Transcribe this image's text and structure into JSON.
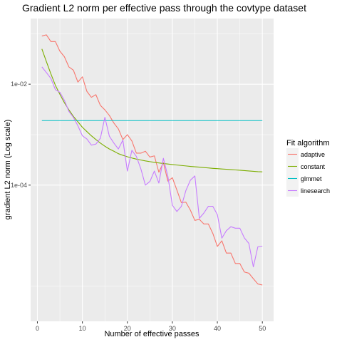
{
  "chart_data": {
    "type": "line",
    "title": "Gradient L2 norm per effective pass through the covtype dataset",
    "xlabel": "Number of effective passes",
    "ylabel": "gradient L2 norm (Log scale)",
    "x_scale": "linear",
    "y_scale": "log10",
    "xlim": [
      -1.5,
      52.5
    ],
    "ylim": [
      2e-07,
      0.2
    ],
    "x_ticks": [
      0,
      10,
      20,
      30,
      40,
      50
    ],
    "x_tick_labels": [
      "0",
      "10",
      "20",
      "30",
      "40",
      "50"
    ],
    "y_ticks": [
      0.0001,
      0.01
    ],
    "y_tick_labels": [
      "1e-04",
      "1e-02"
    ],
    "grid": true,
    "legend": {
      "title": "Fit algorithm",
      "position": "right"
    },
    "series": [
      {
        "name": "adaptive",
        "color": "#F8766D",
        "x": [
          1,
          2,
          3,
          4,
          5,
          6,
          7,
          8,
          9,
          10,
          11,
          12,
          13,
          14,
          15,
          16,
          17,
          18,
          19,
          20,
          21,
          22,
          23,
          24,
          25,
          26,
          27,
          28,
          29,
          30,
          31,
          32,
          33,
          34,
          35,
          36,
          37,
          38,
          39,
          40,
          41,
          42,
          43,
          44,
          45,
          46,
          47,
          48,
          49,
          50
        ],
        "y": [
          0.09,
          0.095,
          0.07,
          0.07,
          0.045,
          0.035,
          0.022,
          0.019,
          0.011,
          0.014,
          0.0072,
          0.0055,
          0.0062,
          0.0038,
          0.0031,
          0.0024,
          0.0017,
          0.0013,
          0.0008,
          0.001,
          0.00075,
          0.00043,
          0.00043,
          0.00047,
          0.00036,
          0.00038,
          0.00018,
          0.00028,
          0.00012,
          0.00014,
          8e-05,
          4.5e-05,
          4.6e-05,
          3.2e-05,
          2e-05,
          2.1e-05,
          1.7e-05,
          1.7e-05,
          1.1e-05,
          6.1e-06,
          7.9e-06,
          4.5e-06,
          4.5e-06,
          2.8e-06,
          2.8e-06,
          1.9e-06,
          1.8e-06,
          1.4e-06,
          1.1e-06,
          1.05e-06
        ]
      },
      {
        "name": "constant",
        "color": "#7CAE00",
        "x": [
          1,
          2,
          3,
          4,
          5,
          6,
          7,
          8,
          9,
          10,
          11,
          12,
          13,
          14,
          15,
          16,
          17,
          18,
          19,
          20,
          21,
          22,
          23,
          24,
          25,
          26,
          27,
          28,
          29,
          30,
          31,
          32,
          33,
          34,
          35,
          36,
          37,
          38,
          39,
          40,
          41,
          42,
          43,
          44,
          45,
          46,
          47,
          48,
          49,
          50
        ],
        "y": [
          0.05,
          0.028,
          0.016,
          0.0095,
          0.0063,
          0.0043,
          0.0031,
          0.0023,
          0.0018,
          0.0014,
          0.00115,
          0.00095,
          0.0008,
          0.00068,
          0.00059,
          0.00052,
          0.00047,
          0.00042,
          0.00039,
          0.000365,
          0.000345,
          0.000328,
          0.000314,
          0.000302,
          0.000292,
          0.000283,
          0.000275,
          0.000268,
          0.000262,
          0.000256,
          0.00025,
          0.000245,
          0.00024,
          0.000235,
          0.000231,
          0.000227,
          0.000223,
          0.000219,
          0.000215,
          0.000212,
          0.000209,
          0.000206,
          0.000203,
          0.0002,
          0.000197,
          0.000194,
          0.000191,
          0.000188,
          0.000185,
          0.000183
        ]
      },
      {
        "name": "glmmet",
        "color": "#00BFC4",
        "x": [
          1,
          50
        ],
        "y": [
          0.0019,
          0.0019
        ]
      },
      {
        "name": "linesearch",
        "color": "#C77CFF",
        "x": [
          1,
          2,
          3,
          4,
          5,
          6,
          7,
          8,
          9,
          10,
          11,
          12,
          13,
          14,
          15,
          16,
          17,
          18,
          19,
          20,
          21,
          22,
          23,
          24,
          25,
          26,
          27,
          28,
          29,
          30,
          31,
          32,
          33,
          34,
          35,
          36,
          37,
          38,
          39,
          40,
          41,
          42,
          43,
          44,
          45,
          46,
          47,
          48,
          49,
          50
        ],
        "y": [
          0.022,
          0.017,
          0.013,
          0.0078,
          0.0069,
          0.0048,
          0.0029,
          0.0022,
          0.0015,
          0.00095,
          0.00082,
          0.00062,
          0.00065,
          0.00085,
          0.0022,
          0.00093,
          0.00068,
          0.00052,
          0.00078,
          0.00019,
          0.00049,
          0.00037,
          0.00021,
          0.0001,
          0.000118,
          0.00019,
          0.00011,
          0.00034,
          0.00015,
          4e-05,
          3e-05,
          3.8e-05,
          7.8e-05,
          0.000125,
          0.000152,
          2.2e-05,
          2.8e-05,
          3.8e-05,
          3.8e-05,
          2.6e-05,
          8.9e-06,
          1.25e-05,
          1.5e-05,
          1.4e-05,
          1.4e-05,
          9e-06,
          7e-06,
          2.4e-06,
          6e-06,
          6.2e-06
        ]
      }
    ]
  }
}
